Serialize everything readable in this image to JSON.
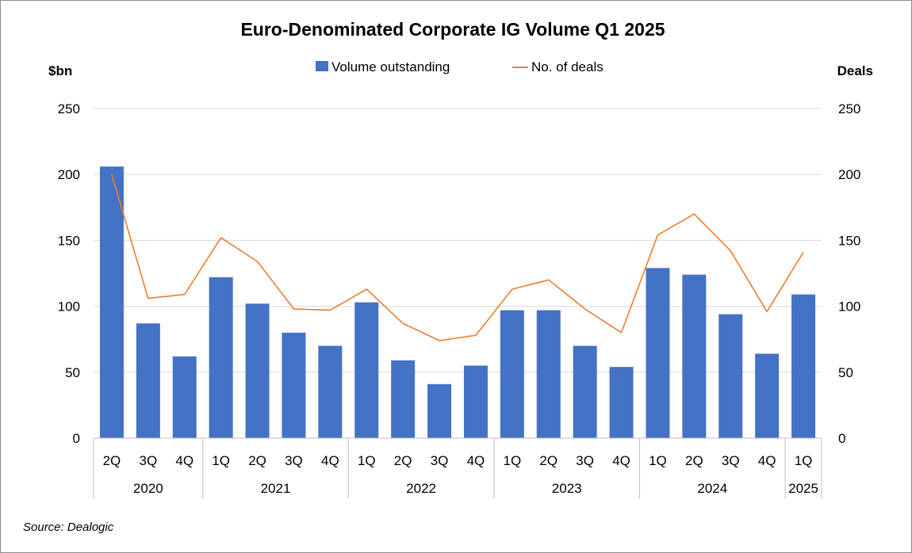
{
  "chart_data": {
    "type": "bar+line",
    "title": "Euro-Denominated Corporate IG Volume Q1 2025",
    "ylabel_left": "$bn",
    "ylabel_right": "Deals",
    "ylim": [
      0,
      250
    ],
    "yticks": [
      0,
      50,
      100,
      150,
      200,
      250
    ],
    "legend": {
      "bar": "Volume outstanding",
      "line": "No. of deals",
      "position": "top-center"
    },
    "grid": true,
    "categories": [
      "2Q",
      "3Q",
      "4Q",
      "1Q",
      "2Q",
      "3Q",
      "4Q",
      "1Q",
      "2Q",
      "3Q",
      "4Q",
      "1Q",
      "2Q",
      "3Q",
      "4Q",
      "1Q",
      "2Q",
      "3Q",
      "4Q",
      "1Q"
    ],
    "year_groups": [
      {
        "label": "2020",
        "count": 3
      },
      {
        "label": "2021",
        "count": 4
      },
      {
        "label": "2022",
        "count": 4
      },
      {
        "label": "2023",
        "count": 4
      },
      {
        "label": "2024",
        "count": 4
      },
      {
        "label": "2025",
        "count": 1
      }
    ],
    "series": [
      {
        "name": "Volume outstanding",
        "kind": "bar",
        "axis": "left",
        "values": [
          206,
          87,
          62,
          122,
          102,
          80,
          70,
          103,
          59,
          41,
          55,
          97,
          97,
          70,
          54,
          129,
          124,
          94,
          64,
          109
        ]
      },
      {
        "name": "No. of deals",
        "kind": "line",
        "axis": "right",
        "values": [
          200,
          106,
          109,
          152,
          134,
          98,
          97,
          113,
          87,
          74,
          78,
          113,
          120,
          98,
          80,
          154,
          170,
          142,
          96,
          141
        ]
      }
    ],
    "colors": {
      "bar": "#4472C4",
      "line": "#ED7D31",
      "grid": "#D9D9D9",
      "axis": "#BFBFBF"
    }
  },
  "source": "Source: Dealogic"
}
